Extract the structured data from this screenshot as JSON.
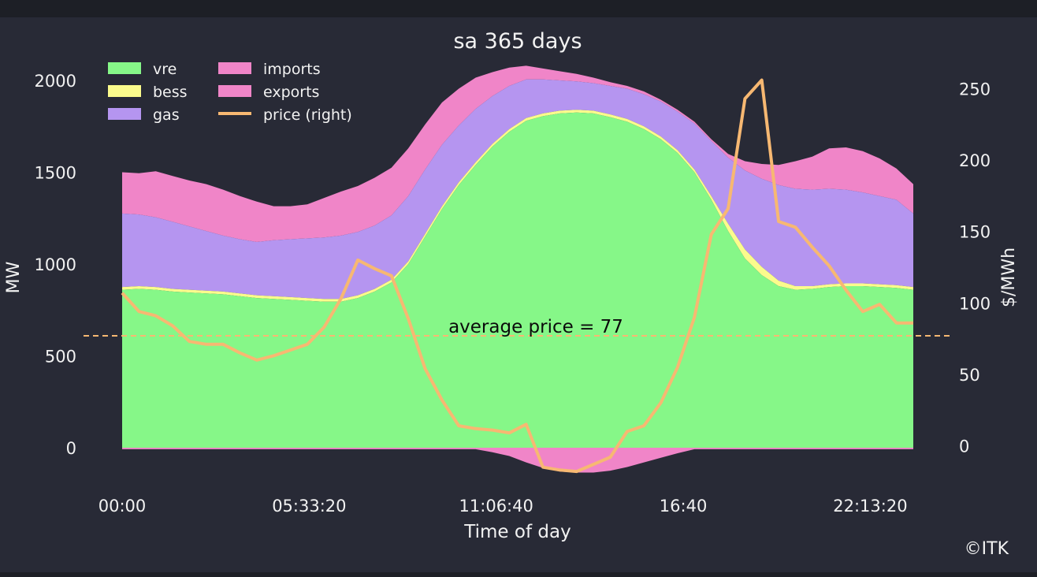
{
  "chart_data": {
    "type": "area",
    "title": "sa 365 days",
    "xlabel": "Time of day",
    "ylabel": "MW",
    "ylabel_right": "$/MWh",
    "copyright": "©ITK",
    "x_ticks": [
      "00:00",
      "05:33:20",
      "11:06:40",
      "16:40",
      "22:13:20"
    ],
    "x_tick_hours": [
      0,
      5.5556,
      11.1111,
      16.6667,
      22.2222
    ],
    "x_range_hours": [
      0,
      23.5
    ],
    "y_ticks": [
      "0",
      "500",
      "1000",
      "1500",
      "2000"
    ],
    "y_tick_values": [
      0,
      500,
      1000,
      1500,
      2000
    ],
    "ylim": [
      -200,
      2110
    ],
    "y2_ticks": [
      "0",
      "50",
      "100",
      "150",
      "200",
      "250"
    ],
    "y2_tick_values": [
      0,
      50,
      100,
      150,
      200,
      250
    ],
    "y2lim": [
      -21,
      266
    ],
    "legend": [
      "vre",
      "bess",
      "gas",
      "imports",
      "exports",
      "price (right)"
    ],
    "average_price": 77,
    "average_label": "average price = 77",
    "colors": {
      "vre": "#86f788",
      "bess": "#fbfb8c",
      "gas": "#b595f0",
      "imports": "#f085c8",
      "exports": "#f085c8",
      "price": "#f7b872",
      "background": "#282a36",
      "text": "#f2f2f2"
    },
    "hours": [
      0,
      0.5,
      1,
      1.5,
      2,
      2.5,
      3,
      3.5,
      4,
      4.5,
      5,
      5.5,
      6,
      6.5,
      7,
      7.5,
      8,
      8.5,
      9,
      9.5,
      10,
      10.5,
      11,
      11.5,
      12,
      12.5,
      13,
      13.5,
      14,
      14.5,
      15,
      15.5,
      16,
      16.5,
      17,
      17.5,
      18,
      18.5,
      19,
      19.5,
      20,
      20.5,
      21,
      21.5,
      22,
      22.5,
      23,
      23.5
    ],
    "series": [
      {
        "name": "vre",
        "values": [
          860,
          865,
          860,
          850,
          845,
          840,
          835,
          825,
          815,
          810,
          805,
          800,
          795,
          795,
          815,
          850,
          900,
          1000,
          1150,
          1300,
          1430,
          1540,
          1640,
          1720,
          1780,
          1805,
          1820,
          1825,
          1820,
          1800,
          1775,
          1735,
          1680,
          1605,
          1500,
          1350,
          1180,
          1030,
          940,
          880,
          860,
          865,
          875,
          880,
          880,
          875,
          870,
          860
        ]
      },
      {
        "name": "bess",
        "values": [
          15,
          15,
          15,
          15,
          15,
          15,
          15,
          15,
          15,
          15,
          15,
          15,
          15,
          15,
          15,
          15,
          15,
          15,
          15,
          15,
          15,
          15,
          15,
          15,
          15,
          15,
          15,
          15,
          15,
          15,
          15,
          15,
          15,
          15,
          15,
          20,
          40,
          50,
          45,
          30,
          20,
          15,
          15,
          15,
          15,
          15,
          15,
          15
        ]
      },
      {
        "name": "gas",
        "values": [
          400,
          390,
          380,
          365,
          345,
          325,
          305,
          295,
          290,
          305,
          315,
          325,
          335,
          345,
          345,
          345,
          350,
          355,
          350,
          335,
          310,
          290,
          260,
          235,
          210,
          185,
          165,
          155,
          150,
          155,
          165,
          175,
          190,
          210,
          250,
          300,
          360,
          430,
          480,
          520,
          530,
          525,
          520,
          510,
          495,
          480,
          465,
          400
        ]
      },
      {
        "name": "imports",
        "values": [
          225,
          225,
          250,
          250,
          250,
          255,
          250,
          235,
          220,
          185,
          180,
          185,
          215,
          240,
          250,
          260,
          260,
          260,
          245,
          230,
          200,
          170,
          130,
          100,
          75,
          60,
          50,
          40,
          30,
          20,
          15,
          15,
          10,
          10,
          10,
          10,
          20,
          50,
          80,
          110,
          150,
          180,
          220,
          230,
          225,
          205,
          170,
          160
        ]
      },
      {
        "name": "exports",
        "values": [
          -8,
          -8,
          -8,
          -8,
          -8,
          -8,
          -8,
          -8,
          -8,
          -8,
          -8,
          -8,
          -8,
          -8,
          -8,
          -8,
          -8,
          -8,
          -8,
          -8,
          -8,
          -8,
          -25,
          -45,
          -80,
          -110,
          -130,
          -135,
          -135,
          -125,
          -105,
          -80,
          -55,
          -30,
          -8,
          -8,
          -8,
          -8,
          -8,
          -8,
          -8,
          -8,
          -8,
          -8,
          -8,
          -8,
          -8,
          -8
        ]
      },
      {
        "name": "price (right)",
        "values": [
          107,
          94,
          91,
          84,
          73,
          71,
          71,
          65,
          60,
          63,
          67,
          71,
          83,
          103,
          130,
          124,
          119,
          89,
          54,
          32,
          14,
          12,
          11,
          9,
          15,
          -15,
          -17,
          -18,
          -13,
          -8,
          10,
          14,
          30,
          55,
          90,
          148,
          166,
          243,
          256,
          157,
          153,
          139,
          126,
          109,
          94,
          99,
          86,
          86
        ]
      }
    ]
  }
}
